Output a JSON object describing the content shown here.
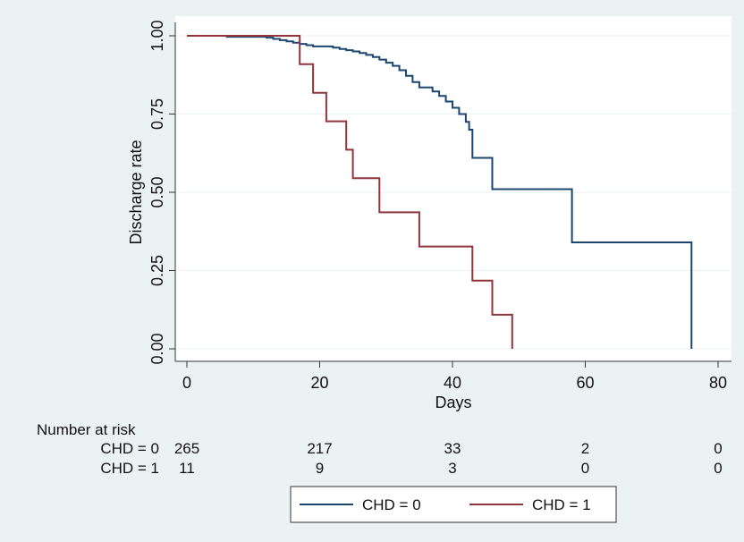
{
  "chart_data": {
    "type": "line",
    "subtype": "kaplan-meier step plot",
    "title": "",
    "xlabel": "Days",
    "ylabel": "Discharge rate",
    "xlim": [
      0,
      80
    ],
    "ylim": [
      0,
      1
    ],
    "x_ticks": [
      "0",
      "20",
      "40",
      "60",
      "80"
    ],
    "y_ticks": [
      "0.00",
      "0.25",
      "0.50",
      "0.75",
      "1.00"
    ],
    "grid": "horizontal",
    "background": "#eaf2f3",
    "legend_position": "bottom",
    "series": [
      {
        "name": "CHD = 0",
        "color": "#1a476f",
        "points": [
          [
            0,
            1.0
          ],
          [
            6,
            0.997
          ],
          [
            12,
            0.994
          ],
          [
            13,
            0.99
          ],
          [
            14,
            0.986
          ],
          [
            15,
            0.982
          ],
          [
            16,
            0.978
          ],
          [
            17,
            0.974
          ],
          [
            18,
            0.97
          ],
          [
            19,
            0.966
          ],
          [
            22,
            0.962
          ],
          [
            23,
            0.958
          ],
          [
            24,
            0.954
          ],
          [
            25,
            0.95
          ],
          [
            26,
            0.945
          ],
          [
            27,
            0.939
          ],
          [
            28,
            0.932
          ],
          [
            29,
            0.924
          ],
          [
            30,
            0.914
          ],
          [
            31,
            0.904
          ],
          [
            32,
            0.89
          ],
          [
            33,
            0.872
          ],
          [
            34,
            0.852
          ],
          [
            35,
            0.835
          ],
          [
            37,
            0.822
          ],
          [
            38,
            0.808
          ],
          [
            39,
            0.79
          ],
          [
            40,
            0.77
          ],
          [
            41,
            0.75
          ],
          [
            42,
            0.725
          ],
          [
            42.5,
            0.7
          ],
          [
            43,
            0.61
          ],
          [
            46,
            0.51
          ],
          [
            58,
            0.34
          ],
          [
            76,
            0.0
          ]
        ]
      },
      {
        "name": "CHD = 1",
        "color": "#90353b",
        "points": [
          [
            0,
            1.0
          ],
          [
            17,
            0.909
          ],
          [
            19,
            0.818
          ],
          [
            21,
            0.727
          ],
          [
            24,
            0.636
          ],
          [
            25,
            0.545
          ],
          [
            29,
            0.436
          ],
          [
            35,
            0.327
          ],
          [
            43,
            0.218
          ],
          [
            46,
            0.109
          ],
          [
            49,
            0.0
          ]
        ]
      }
    ]
  },
  "risk_table": {
    "heading": "Number at risk",
    "rows": [
      {
        "label": "CHD = 0",
        "values": [
          "265",
          "217",
          "33",
          "2",
          "0"
        ]
      },
      {
        "label": "CHD = 1",
        "values": [
          "11",
          "9",
          "3",
          "0",
          "0"
        ]
      }
    ]
  }
}
